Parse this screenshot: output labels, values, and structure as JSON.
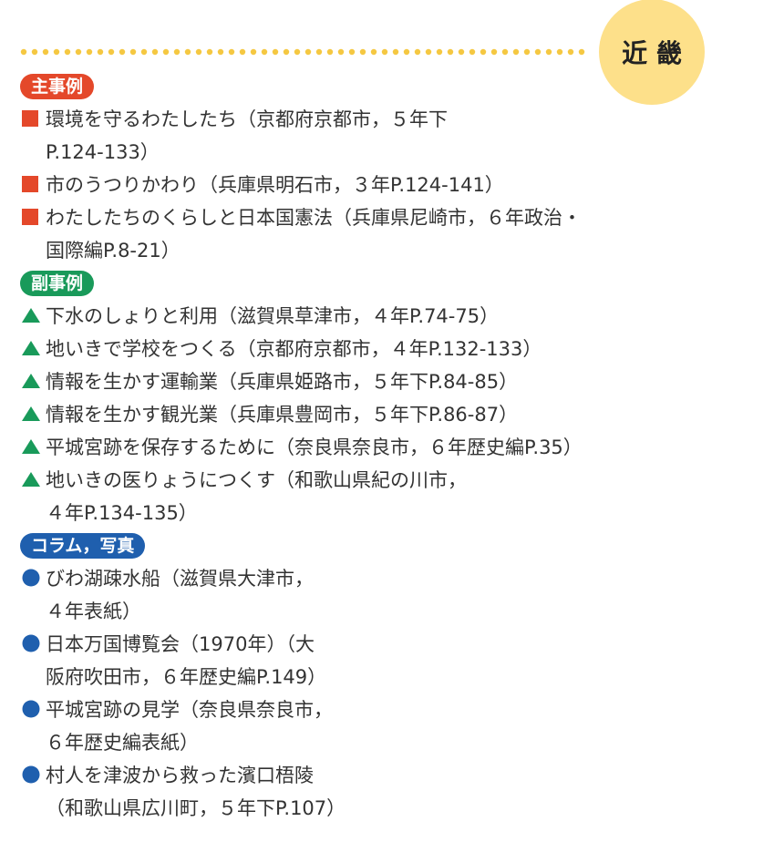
{
  "header": {
    "title": "近 畿"
  },
  "sections": [
    {
      "label": "主事例",
      "items": [
        {
          "lines": [
            "環境を守るわたしたち（京都府京都市，５年下",
            "P.124-133）"
          ]
        },
        {
          "lines": [
            "市のうつりかわり（兵庫県明石市，３年P.124-141）"
          ]
        },
        {
          "lines": [
            "わたしたちのくらしと日本国憲法（兵庫県尼崎市，６年政治・",
            "国際編P.8-21）"
          ]
        }
      ]
    },
    {
      "label": "副事例",
      "items": [
        {
          "lines": [
            "下水のしょりと利用（滋賀県草津市，４年P.74-75）"
          ]
        },
        {
          "lines": [
            "地いきで学校をつくる（京都府京都市，４年P.132-133）"
          ]
        },
        {
          "lines": [
            "情報を生かす運輸業（兵庫県姫路市，５年下P.84-85）"
          ]
        },
        {
          "lines": [
            "情報を生かす観光業（兵庫県豊岡市，５年下P.86-87）"
          ]
        },
        {
          "lines": [
            "平城宮跡を保存するために（奈良県奈良市，６年歴史編P.35）"
          ]
        },
        {
          "lines": [
            "地いきの医りょうにつくす（和歌山県紀の川市，",
            "４年P.134-135）"
          ]
        }
      ]
    },
    {
      "label": "コラム，写真",
      "items": [
        {
          "lines": [
            "びわ湖疎水船（滋賀県大津市，",
            "４年表紙）"
          ]
        },
        {
          "lines": [
            "日本万国博覧会（1970年）（大",
            "阪府吹田市，６年歴史編P.149）"
          ]
        },
        {
          "lines": [
            "平城宮跡の見学（奈良県奈良市，",
            "６年歴史編表紙）"
          ]
        },
        {
          "lines": [
            "村人を津波から救った濱口梧陵",
            "（和歌山県広川町，５年下P.107）"
          ]
        }
      ]
    }
  ]
}
